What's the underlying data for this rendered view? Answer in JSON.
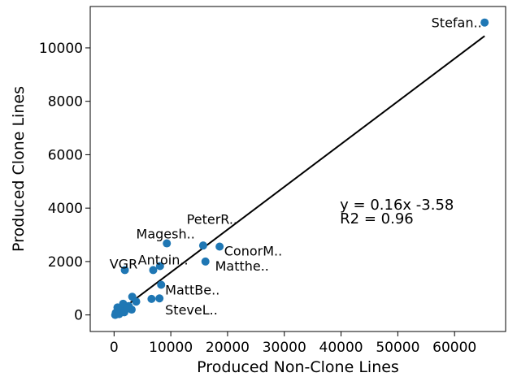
{
  "chart_data": {
    "type": "scatter",
    "xlabel": "Produced Non-Clone Lines",
    "ylabel": "Produced Clone Lines",
    "xlim": [
      -4200,
      69000
    ],
    "ylim": [
      -620,
      11550
    ],
    "xticks": [
      0,
      10000,
      20000,
      30000,
      40000,
      50000,
      60000
    ],
    "xtick_labels": [
      "0",
      "10000",
      "20000",
      "30000",
      "40000",
      "50000",
      "60000"
    ],
    "yticks": [
      0,
      2000,
      4000,
      6000,
      8000,
      10000
    ],
    "ytick_labels": [
      "0",
      "2000",
      "4000",
      "6000",
      "8000",
      "10000"
    ],
    "grid": false,
    "point_color": "#1f77b4",
    "line_color": "#000000",
    "points": [
      {
        "x": 65300,
        "y": 10950
      },
      {
        "x": 9300,
        "y": 2680
      },
      {
        "x": 15700,
        "y": 2600
      },
      {
        "x": 18600,
        "y": 2560
      },
      {
        "x": 16100,
        "y": 2000
      },
      {
        "x": 1900,
        "y": 1680
      },
      {
        "x": 6900,
        "y": 1680
      },
      {
        "x": 8100,
        "y": 1830
      },
      {
        "x": 8300,
        "y": 1130
      },
      {
        "x": 8000,
        "y": 620
      },
      {
        "x": 6600,
        "y": 600
      },
      {
        "x": 3200,
        "y": 680
      },
      {
        "x": 3900,
        "y": 500
      },
      {
        "x": 2600,
        "y": 330
      },
      {
        "x": 3100,
        "y": 200
      },
      {
        "x": 1600,
        "y": 420
      },
      {
        "x": 1200,
        "y": 150
      },
      {
        "x": 600,
        "y": 280
      },
      {
        "x": 300,
        "y": 80
      },
      {
        "x": 200,
        "y": 0
      },
      {
        "x": 900,
        "y": 30
      },
      {
        "x": 1800,
        "y": 100
      },
      {
        "x": 2300,
        "y": 250
      }
    ],
    "fit": {
      "slope": 0.16,
      "intercept": -3.58,
      "x_range": [
        0,
        65300
      ]
    },
    "annotations": [
      {
        "text": "Stefan..",
        "x": 64800,
        "y": 10950,
        "anchor": "end"
      },
      {
        "text": "Magesh..",
        "x": 3900,
        "y": 3050,
        "anchor": "start"
      },
      {
        "text": "PeterR..",
        "x": 12800,
        "y": 3600,
        "anchor": "start"
      },
      {
        "text": "ConorM..",
        "x": 19400,
        "y": 2400,
        "anchor": "start"
      },
      {
        "text": "Matthe..",
        "x": 17800,
        "y": 1850,
        "anchor": "start"
      },
      {
        "text": "VGR",
        "x": -800,
        "y": 1920,
        "anchor": "start"
      },
      {
        "text": "Antoin..",
        "x": 4200,
        "y": 2080,
        "anchor": "start"
      },
      {
        "text": "MattBe..",
        "x": 9000,
        "y": 950,
        "anchor": "start"
      },
      {
        "text": "SteveL..",
        "x": 9000,
        "y": 200,
        "anchor": "start"
      }
    ],
    "equation_text": "y = 0.16x  -3.58",
    "r2_text": "R2 = 0.96",
    "equation_position": {
      "x": 39800,
      "y": 3950
    }
  }
}
